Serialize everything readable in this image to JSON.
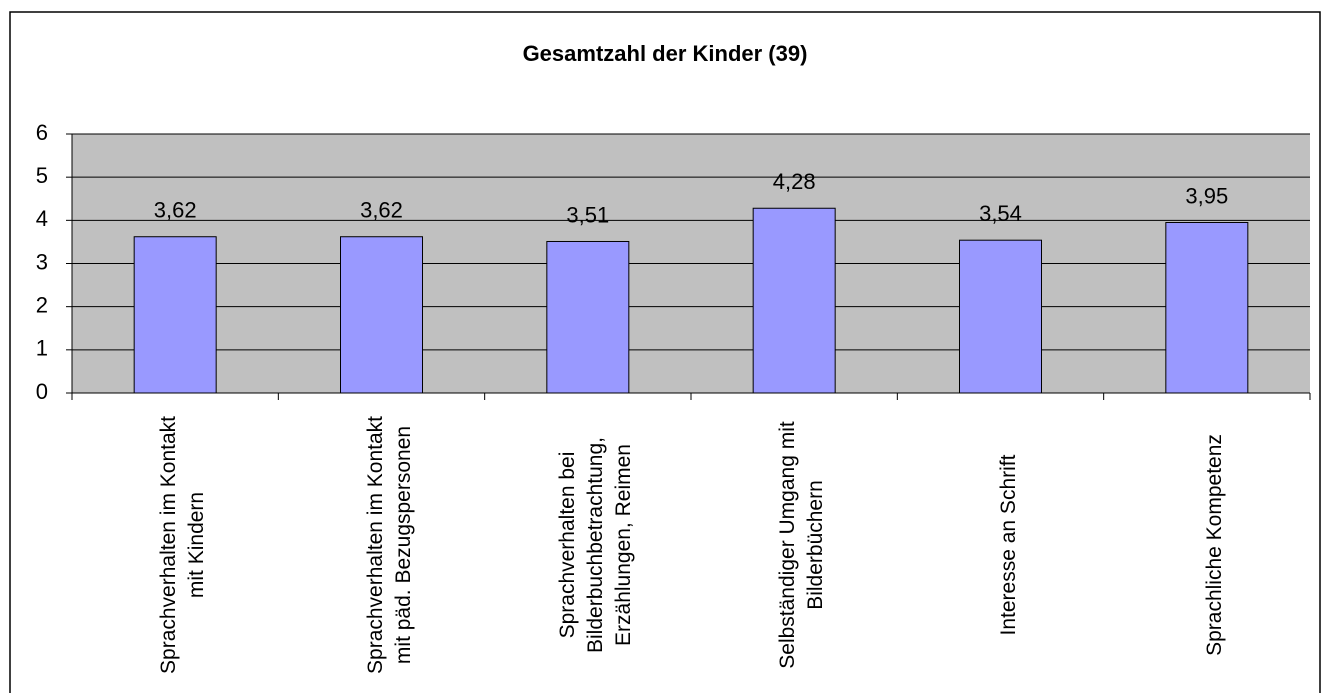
{
  "chart_data": {
    "type": "bar",
    "title": "Gesamtzahl der Kinder (39)",
    "categories": [
      "Sprachverhalten im Kontakt mit Kindern",
      "Sprachverhalten im Kontakt mit päd. Bezugspersonen",
      "Sprachverhalten bei Bilderbuchbetrachtung, Erzählungen, Reimen",
      "Selbständiger Umgang mit Bilderbüchern",
      "Interesse an Schrift",
      "Sprachliche Kompetenz"
    ],
    "values": [
      3.62,
      3.62,
      3.51,
      4.28,
      3.54,
      3.95
    ],
    "value_labels": [
      "3,62",
      "3,62",
      "3,51",
      "4,28",
      "3,54",
      "3,95"
    ],
    "color": "#9999ff",
    "ylim": [
      0,
      6
    ],
    "yticks": [
      0,
      1,
      2,
      3,
      4,
      5,
      6
    ],
    "grid": true
  }
}
